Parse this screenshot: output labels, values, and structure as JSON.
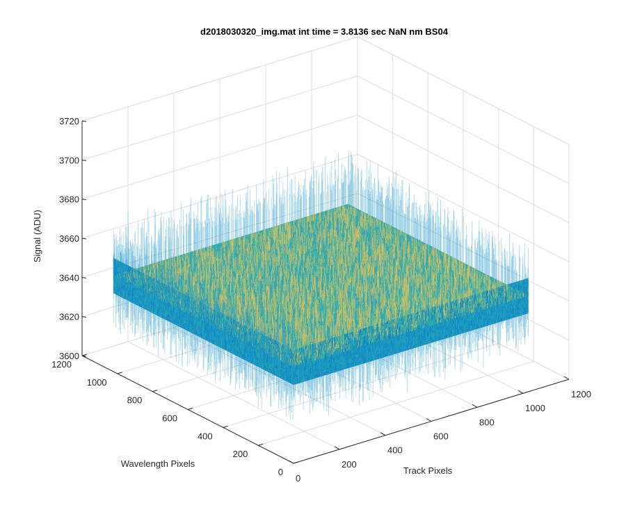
{
  "chart_data": {
    "type": "surface",
    "title": "d2018030320_img.mat int time = 3.8136 sec  NaN nm BS04",
    "xlabel": "Track Pixels",
    "ylabel": "Wavelength Pixels",
    "zlabel": "Signal (ADU)",
    "x_ticks": [
      "0",
      "200",
      "400",
      "600",
      "800",
      "1000",
      "1200"
    ],
    "y_ticks": [
      "0",
      "200",
      "400",
      "600",
      "800",
      "1000",
      "1200"
    ],
    "z_ticks": [
      "3600",
      "3620",
      "3640",
      "3660",
      "3680",
      "3700",
      "3720"
    ],
    "xlim": [
      0,
      1200
    ],
    "ylim": [
      0,
      1200
    ],
    "zlim": [
      3600,
      3720
    ],
    "data_extent": {
      "x": [
        1,
        1024
      ],
      "y": [
        1,
        1024
      ]
    },
    "signal_mean": 3649,
    "signal_noise_range": [
      3610,
      3700
    ],
    "grid": true,
    "view": "3d-default",
    "colormap": [
      "#0072bd",
      "#1d8fd0",
      "#16a6b6",
      "#3db89a",
      "#7cc27f",
      "#c8c067",
      "#e6c25b"
    ]
  }
}
